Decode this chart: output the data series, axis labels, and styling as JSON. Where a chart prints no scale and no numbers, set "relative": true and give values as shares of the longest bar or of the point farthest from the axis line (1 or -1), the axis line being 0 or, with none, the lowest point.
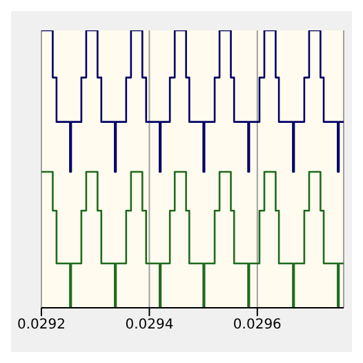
{
  "chart_data": {
    "type": "step",
    "relative": true,
    "marker": "none",
    "line_style": "solid",
    "grid": "x",
    "x": [
      0.0292,
      0.029221,
      0.029228,
      0.029253,
      0.029255,
      0.029274,
      0.029283,
      0.029304,
      0.029311,
      0.029336,
      0.029338,
      0.029357,
      0.029366,
      0.029387,
      0.029394,
      0.029419,
      0.029421,
      0.029438,
      0.029447,
      0.029468,
      0.029474,
      0.0295,
      0.029502,
      0.029521,
      0.02953,
      0.029551,
      0.029557,
      0.029583,
      0.029585,
      0.029604,
      0.029613,
      0.029634,
      0.02964,
      0.029666,
      0.029668,
      0.029687,
      0.029696,
      0.029717,
      0.029723,
      0.029749,
      0.029751,
      0.02976
    ],
    "xlim": [
      0.0292,
      0.02976
    ],
    "xticks": [
      0.0292,
      0.0294,
      0.0296
    ],
    "series": [
      {
        "color": "#000066",
        "values": [
          1,
          0.83,
          0.67,
          0.49,
          0.67,
          0.83,
          1,
          0.83,
          0.67,
          0.49,
          0.67,
          0.83,
          1,
          0.83,
          0.67,
          0.49,
          0.67,
          0.83,
          1,
          0.83,
          0.67,
          0.49,
          0.67,
          0.83,
          1,
          0.83,
          0.67,
          0.49,
          0.67,
          0.83,
          1,
          0.83,
          0.67,
          0.49,
          0.67,
          0.83,
          1,
          0.83,
          0.67,
          0.49,
          0.67,
          0.67
        ]
      },
      {
        "color": "#1f6b1f",
        "values": [
          0.49,
          0.35,
          0.16,
          0,
          0.16,
          0.35,
          0.49,
          0.35,
          0.16,
          0,
          0.16,
          0.35,
          0.49,
          0.35,
          0.16,
          0,
          0.16,
          0.35,
          0.49,
          0.35,
          0.16,
          0,
          0.16,
          0.35,
          0.49,
          0.35,
          0.16,
          0,
          0.16,
          0.35,
          0.49,
          0.35,
          0.16,
          0,
          0.16,
          0.35,
          0.49,
          0.35,
          0.16,
          0,
          0.16,
          0.16
        ]
      }
    ]
  }
}
